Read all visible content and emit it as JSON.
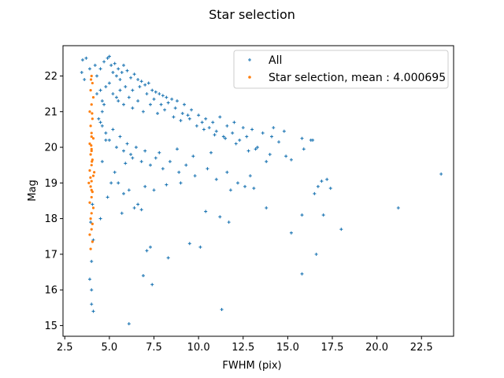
{
  "chart_data": {
    "type": "scatter",
    "title": "Star selection",
    "xlabel": "FWHM (pix)",
    "ylabel": "Mag",
    "xlim": [
      2.4,
      24.3
    ],
    "ylim": [
      14.7,
      22.85
    ],
    "xticks": [
      2.5,
      5.0,
      7.5,
      10.0,
      12.5,
      15.0,
      17.5,
      20.0,
      22.5
    ],
    "xtick_labels": [
      "2.5",
      "5.0",
      "7.5",
      "10.0",
      "12.5",
      "15.0",
      "17.5",
      "20.0",
      "22.5"
    ],
    "yticks": [
      15,
      16,
      17,
      18,
      19,
      20,
      21,
      22
    ],
    "ytick_labels": [
      "15",
      "16",
      "17",
      "18",
      "19",
      "20",
      "21",
      "22"
    ],
    "grid": false,
    "legend_position": "top-right",
    "series": [
      {
        "name": "All",
        "color": "#1f77b4",
        "marker": "plus",
        "points": [
          [
            3.5,
            22.45
          ],
          [
            3.7,
            22.5
          ],
          [
            3.45,
            22.1
          ],
          [
            3.6,
            21.9
          ],
          [
            3.9,
            22.2
          ],
          [
            4.2,
            22.3
          ],
          [
            4.3,
            22.0
          ],
          [
            4.5,
            22.2
          ],
          [
            4.7,
            22.4
          ],
          [
            4.9,
            22.5
          ],
          [
            5.0,
            22.55
          ],
          [
            5.1,
            22.3
          ],
          [
            5.2,
            22.1
          ],
          [
            5.3,
            22.35
          ],
          [
            5.4,
            22.0
          ],
          [
            5.5,
            22.2
          ],
          [
            5.6,
            21.9
          ],
          [
            5.7,
            22.1
          ],
          [
            5.8,
            22.3
          ],
          [
            6.0,
            22.15
          ],
          [
            6.2,
            21.95
          ],
          [
            6.4,
            22.05
          ],
          [
            6.6,
            21.9
          ],
          [
            6.8,
            21.85
          ],
          [
            7.0,
            21.75
          ],
          [
            7.2,
            21.8
          ],
          [
            7.4,
            21.6
          ],
          [
            7.6,
            21.55
          ],
          [
            7.8,
            21.5
          ],
          [
            8.0,
            21.45
          ],
          [
            8.2,
            21.4
          ],
          [
            8.5,
            21.35
          ],
          [
            8.8,
            21.3
          ],
          [
            9.2,
            21.2
          ],
          [
            9.6,
            21.05
          ],
          [
            10.0,
            20.9
          ],
          [
            10.4,
            20.8
          ],
          [
            10.8,
            20.7
          ],
          [
            11.2,
            20.85
          ],
          [
            11.6,
            20.6
          ],
          [
            12.0,
            20.7
          ],
          [
            12.5,
            20.55
          ],
          [
            13.0,
            20.5
          ],
          [
            13.6,
            20.4
          ],
          [
            14.2,
            20.55
          ],
          [
            14.8,
            20.45
          ],
          [
            15.8,
            20.25
          ],
          [
            16.4,
            20.2
          ],
          [
            4.3,
            21.5
          ],
          [
            4.5,
            21.6
          ],
          [
            4.6,
            21.3
          ],
          [
            4.8,
            21.7
          ],
          [
            5.0,
            21.8
          ],
          [
            5.2,
            21.5
          ],
          [
            5.4,
            21.4
          ],
          [
            5.6,
            21.6
          ],
          [
            5.8,
            21.2
          ],
          [
            6.1,
            21.4
          ],
          [
            6.3,
            21.1
          ],
          [
            6.6,
            21.3
          ],
          [
            6.9,
            21.0
          ],
          [
            7.3,
            21.2
          ],
          [
            7.7,
            20.95
          ],
          [
            8.1,
            21.05
          ],
          [
            8.6,
            20.85
          ],
          [
            9.0,
            20.75
          ],
          [
            9.4,
            20.9
          ],
          [
            9.9,
            20.6
          ],
          [
            10.3,
            20.5
          ],
          [
            10.9,
            20.35
          ],
          [
            11.5,
            20.25
          ],
          [
            12.1,
            20.1
          ],
          [
            12.8,
            19.9
          ],
          [
            13.3,
            20.0
          ],
          [
            14.0,
            19.8
          ],
          [
            14.9,
            19.75
          ],
          [
            15.2,
            19.65
          ],
          [
            4.4,
            20.8
          ],
          [
            4.6,
            20.6
          ],
          [
            4.8,
            20.4
          ],
          [
            5.0,
            20.2
          ],
          [
            5.2,
            20.5
          ],
          [
            5.4,
            20.0
          ],
          [
            5.6,
            20.3
          ],
          [
            5.8,
            19.9
          ],
          [
            6.0,
            20.1
          ],
          [
            6.2,
            19.8
          ],
          [
            6.5,
            20.0
          ],
          [
            6.8,
            19.6
          ],
          [
            7.0,
            19.9
          ],
          [
            7.3,
            19.5
          ],
          [
            7.6,
            19.7
          ],
          [
            8.0,
            19.4
          ],
          [
            8.4,
            19.6
          ],
          [
            8.9,
            19.3
          ],
          [
            9.3,
            19.5
          ],
          [
            9.8,
            19.2
          ],
          [
            10.5,
            19.4
          ],
          [
            11.0,
            19.1
          ],
          [
            11.6,
            19.3
          ],
          [
            12.2,
            19.0
          ],
          [
            12.9,
            19.2
          ],
          [
            5.3,
            19.3
          ],
          [
            5.5,
            19.0
          ],
          [
            5.8,
            18.7
          ],
          [
            6.1,
            18.8
          ],
          [
            6.4,
            18.3
          ],
          [
            6.6,
            18.4
          ],
          [
            7.0,
            18.9
          ],
          [
            7.5,
            18.8
          ],
          [
            8.2,
            18.95
          ],
          [
            9.0,
            19.0
          ],
          [
            11.8,
            18.8
          ],
          [
            12.6,
            18.9
          ],
          [
            13.1,
            18.85
          ],
          [
            5.7,
            18.15
          ],
          [
            6.8,
            18.25
          ],
          [
            10.4,
            18.2
          ],
          [
            11.2,
            18.05
          ],
          [
            11.7,
            17.9
          ],
          [
            13.8,
            18.3
          ],
          [
            15.8,
            18.1
          ],
          [
            16.7,
            18.9
          ],
          [
            16.9,
            19.05
          ],
          [
            17.0,
            18.1
          ],
          [
            17.2,
            19.1
          ],
          [
            16.5,
            18.7
          ],
          [
            17.4,
            18.85
          ],
          [
            21.2,
            18.3
          ],
          [
            23.6,
            19.25
          ],
          [
            7.3,
            17.2
          ],
          [
            7.1,
            17.1
          ],
          [
            8.3,
            16.9
          ],
          [
            9.5,
            17.3
          ],
          [
            10.1,
            17.2
          ],
          [
            15.2,
            17.6
          ],
          [
            16.6,
            17.0
          ],
          [
            18.0,
            17.7
          ],
          [
            6.9,
            16.4
          ],
          [
            7.4,
            16.15
          ],
          [
            15.8,
            16.45
          ],
          [
            11.3,
            15.45
          ],
          [
            6.1,
            15.05
          ],
          [
            4.0,
            16.0
          ],
          [
            4.0,
            15.6
          ],
          [
            4.1,
            15.4
          ],
          [
            3.9,
            16.3
          ],
          [
            4.0,
            16.8
          ],
          [
            4.1,
            17.4
          ],
          [
            3.95,
            17.9
          ],
          [
            4.05,
            18.4
          ],
          [
            4.5,
            18.0
          ],
          [
            4.9,
            18.6
          ],
          [
            5.1,
            19.0
          ],
          [
            4.6,
            19.6
          ],
          [
            4.8,
            20.2
          ],
          [
            4.5,
            20.7
          ],
          [
            4.6,
            21.0
          ],
          [
            4.7,
            21.2
          ],
          [
            5.5,
            21.3
          ],
          [
            5.9,
            21.7
          ],
          [
            6.3,
            21.6
          ],
          [
            6.7,
            21.7
          ],
          [
            7.1,
            21.5
          ],
          [
            7.5,
            21.35
          ],
          [
            7.9,
            21.2
          ],
          [
            8.3,
            21.25
          ],
          [
            8.7,
            21.1
          ],
          [
            9.1,
            20.95
          ],
          [
            9.5,
            20.8
          ],
          [
            10.2,
            20.7
          ],
          [
            10.6,
            20.55
          ],
          [
            11.0,
            20.45
          ],
          [
            11.4,
            20.3
          ],
          [
            11.9,
            20.4
          ],
          [
            12.3,
            20.2
          ],
          [
            12.7,
            20.3
          ],
          [
            13.2,
            19.95
          ],
          [
            13.8,
            19.6
          ],
          [
            14.5,
            20.15
          ],
          [
            14.1,
            20.3
          ],
          [
            15.9,
            19.95
          ],
          [
            16.3,
            20.2
          ],
          [
            10.7,
            19.85
          ],
          [
            9.7,
            19.75
          ],
          [
            8.8,
            19.95
          ],
          [
            7.8,
            19.85
          ],
          [
            6.3,
            19.7
          ],
          [
            5.9,
            19.55
          ]
        ]
      },
      {
        "name": "Star selection, mean : 4.000695",
        "color": "#ff7f0e",
        "marker": "dot",
        "points": [
          [
            4.0,
            22.0
          ],
          [
            4.05,
            21.8
          ],
          [
            3.95,
            21.6
          ],
          [
            4.1,
            21.4
          ],
          [
            4.0,
            21.2
          ],
          [
            3.9,
            21.0
          ],
          [
            4.05,
            20.8
          ],
          [
            3.95,
            20.6
          ],
          [
            4.0,
            20.4
          ],
          [
            4.1,
            20.25
          ],
          [
            3.9,
            20.1
          ],
          [
            4.0,
            19.95
          ],
          [
            3.95,
            19.8
          ],
          [
            4.05,
            19.65
          ],
          [
            4.0,
            19.5
          ],
          [
            3.9,
            19.35
          ],
          [
            4.1,
            19.2
          ],
          [
            4.0,
            19.05
          ],
          [
            3.95,
            18.9
          ],
          [
            4.05,
            18.75
          ],
          [
            4.0,
            18.6
          ],
          [
            3.9,
            18.45
          ],
          [
            4.1,
            18.3
          ],
          [
            4.0,
            18.15
          ],
          [
            3.95,
            18.0
          ],
          [
            4.05,
            17.85
          ],
          [
            4.0,
            17.7
          ],
          [
            3.9,
            17.55
          ],
          [
            4.05,
            17.35
          ],
          [
            3.95,
            17.15
          ],
          [
            4.0,
            20.3
          ],
          [
            4.0,
            19.9
          ],
          [
            3.85,
            19.0
          ],
          [
            4.15,
            19.3
          ],
          [
            4.0,
            18.8
          ],
          [
            3.98,
            20.05
          ],
          [
            4.02,
            19.6
          ],
          [
            3.97,
            21.9
          ],
          [
            4.03,
            20.95
          ],
          [
            3.94,
            19.15
          ]
        ]
      }
    ]
  }
}
